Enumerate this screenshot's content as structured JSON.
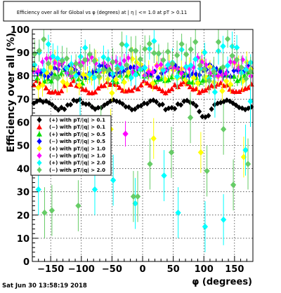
{
  "datestamp": "Sat Jun 30 13:58:19 2018",
  "chart_data": {
    "type": "scatter",
    "title": "Efficiency over all for Global vs φ (degrees) at | η | <= 1.0 at pT > 0.11",
    "xlabel": "φ (degrees)",
    "ylabel": "Efficiency over all (%)",
    "xlim": [
      -180,
      180
    ],
    "ylim": [
      0,
      100
    ],
    "xticks": [
      -150,
      -100,
      -50,
      0,
      50,
      100,
      150
    ],
    "xtick_labels": [
      "−150",
      "−100",
      "−50",
      "0",
      "50",
      "100",
      "150"
    ],
    "yticks": [
      0,
      10,
      20,
      30,
      40,
      50,
      60,
      70,
      80,
      90,
      100
    ],
    "grid": true,
    "legend_position": "center-left",
    "series": [
      {
        "name": "(+) with pT/|q| > 0.1",
        "color": "#000000",
        "marker": "diamond",
        "n": 72,
        "base": 67.5,
        "amp": 1.8,
        "jitter": 0.8,
        "err": 0.9,
        "dip": [
          [
            100,
            4.0,
            8
          ]
        ]
      },
      {
        "name": "(−) with pT/|q| > 0.1",
        "color": "#ff0000",
        "marker": "triangle",
        "n": 72,
        "base": 75,
        "amp": 2.0,
        "jitter": 1.0,
        "err": 1.0
      },
      {
        "name": "(+) with pT/|q| > 0.5",
        "color": "#00dd00",
        "marker": "triangle",
        "n": 64,
        "base": 80,
        "amp": 2.0,
        "jitter": 2.0,
        "err": 1.8
      },
      {
        "name": "(−) with pT/|q| > 0.5",
        "color": "#0000ff",
        "marker": "diamond",
        "n": 64,
        "base": 82,
        "amp": 1.5,
        "jitter": 1.6,
        "err": 1.4
      },
      {
        "name": "(+) with pT/|q| > 1.0",
        "color": "#ffff00",
        "marker": "diamond",
        "n": 54,
        "base": 80,
        "amp": 2.0,
        "jitter": 5.5,
        "err": 4.0,
        "low": [
          [
            -52,
            57
          ],
          [
            18,
            53
          ],
          [
            95,
            47
          ],
          [
            165,
            45
          ]
        ]
      },
      {
        "name": "(−) with pT/|q| > 1.0",
        "color": "#ff00ff",
        "marker": "diamond",
        "n": 54,
        "base": 84,
        "amp": 1.5,
        "jitter": 3.0,
        "err": 2.5,
        "low": [
          [
            -28,
            55
          ]
        ]
      },
      {
        "name": "(+) with pT/|q| > 2.0",
        "color": "#00ffff",
        "marker": "diamond",
        "n": 48,
        "base": 86,
        "amp": 3.0,
        "jitter": 7.0,
        "err": 5.0,
        "low": [
          [
            -170,
            31
          ],
          [
            -102,
            60
          ],
          [
            -78,
            31
          ],
          [
            -48,
            35
          ],
          [
            -12,
            25
          ],
          [
            35,
            37
          ],
          [
            58,
            21
          ],
          [
            102,
            15
          ],
          [
            118,
            73
          ],
          [
            132,
            18
          ],
          [
            168,
            48
          ],
          [
            176,
            69
          ]
        ]
      },
      {
        "name": "(−) with pT/|q| > 2.0",
        "color": "#66cc66",
        "marker": "diamond",
        "n": 48,
        "base": 87,
        "amp": 3.0,
        "jitter": 7.0,
        "err": 5.0,
        "low": [
          [
            -148,
            22
          ],
          [
            -105,
            24
          ],
          [
            -68,
            56
          ],
          [
            -8,
            28
          ],
          [
            12,
            42
          ],
          [
            47,
            47
          ],
          [
            78,
            62
          ],
          [
            105,
            39
          ],
          [
            132,
            57
          ],
          [
            148,
            33
          ],
          [
            172,
            42
          ],
          [
            -160,
            21
          ],
          [
            -15,
            28
          ]
        ]
      }
    ]
  }
}
